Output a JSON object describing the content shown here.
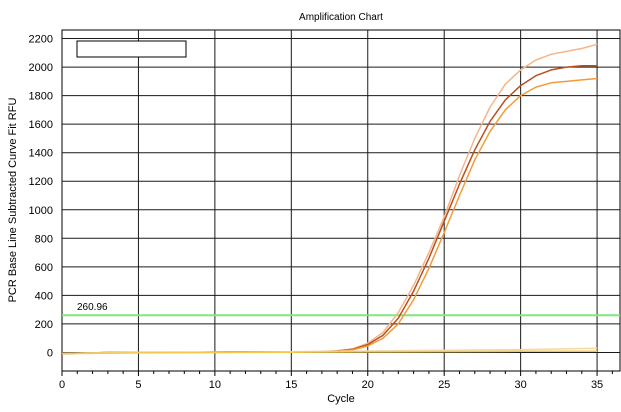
{
  "chart_data": {
    "type": "line",
    "title": "Amplification Chart",
    "xlabel": "Cycle",
    "ylabel": "PCR Base Line Subtracted Curve Fit RFU",
    "xlim": [
      0,
      36.5
    ],
    "ylim": [
      -130,
      2260
    ],
    "xticks": [
      0,
      5,
      10,
      15,
      20,
      25,
      30,
      35
    ],
    "yticks": [
      0,
      200,
      400,
      600,
      800,
      1000,
      1200,
      1400,
      1600,
      1800,
      2000,
      2200
    ],
    "grid": true,
    "legend": "top-left",
    "threshold": {
      "value": 260.96,
      "label": "260.96",
      "color": "#7de87d"
    },
    "series": [
      {
        "color": "#f5b58a",
        "x": [
          0,
          1,
          3,
          5,
          7,
          9,
          11,
          13,
          15,
          17,
          18,
          19,
          20,
          21,
          22,
          23,
          24,
          25,
          26,
          27,
          28,
          29,
          30,
          31,
          32,
          33,
          34,
          35
        ],
        "y": [
          -10,
          -5,
          0,
          0,
          0,
          2,
          3,
          4,
          5,
          6,
          12,
          25,
          65,
          140,
          280,
          470,
          700,
          950,
          1240,
          1500,
          1720,
          1880,
          1980,
          2050,
          2090,
          2110,
          2130,
          2160
        ]
      },
      {
        "color": "#b8501e",
        "x": [
          0,
          1,
          3,
          5,
          7,
          9,
          11,
          13,
          15,
          17,
          18,
          19,
          20,
          21,
          22,
          23,
          24,
          25,
          26,
          27,
          28,
          29,
          30,
          31,
          32,
          33,
          34,
          35
        ],
        "y": [
          -10,
          -5,
          0,
          0,
          0,
          2,
          3,
          4,
          5,
          6,
          10,
          22,
          55,
          120,
          240,
          430,
          660,
          920,
          1180,
          1420,
          1620,
          1770,
          1870,
          1940,
          1980,
          2000,
          2010,
          2010
        ]
      },
      {
        "color": "#f59a3a",
        "x": [
          0,
          1,
          3,
          5,
          7,
          9,
          11,
          13,
          15,
          17,
          18,
          19,
          20,
          21,
          22,
          23,
          24,
          25,
          26,
          27,
          28,
          29,
          30,
          31,
          32,
          33,
          34,
          35
        ],
        "y": [
          -10,
          -5,
          0,
          0,
          0,
          2,
          3,
          4,
          5,
          6,
          8,
          18,
          45,
          100,
          200,
          370,
          590,
          840,
          1100,
          1350,
          1550,
          1700,
          1800,
          1860,
          1890,
          1900,
          1910,
          1920
        ]
      },
      {
        "color": "#f2d9a6",
        "x": [
          0,
          5,
          10,
          15,
          20,
          25,
          30,
          35
        ],
        "y": [
          -5,
          0,
          0,
          5,
          10,
          15,
          20,
          30
        ]
      },
      {
        "color": "#f5c84a",
        "x": [
          0,
          5,
          10,
          15,
          20,
          25,
          30,
          35
        ],
        "y": [
          -8,
          -3,
          0,
          2,
          4,
          6,
          8,
          8
        ]
      }
    ]
  }
}
